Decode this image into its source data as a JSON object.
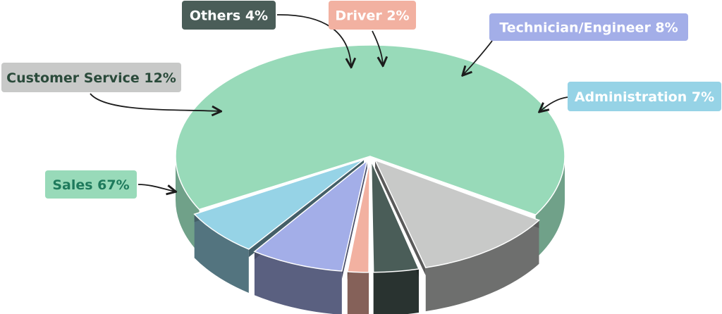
{
  "chart_data": {
    "type": "pie",
    "title": "",
    "legend": "none",
    "slices": [
      {
        "label": "Sales 67%",
        "name": "Sales",
        "value": 67,
        "color": "#98dab9",
        "label_bg": "#98dab9",
        "label_fg": "#1e7a5c"
      },
      {
        "label": "Customer Service 12%",
        "name": "Customer Service",
        "value": 12,
        "color": "#c8c9c8",
        "label_bg": "#c8c9c8",
        "label_fg": "#2a4a3a"
      },
      {
        "label": "Others 4%",
        "name": "Others",
        "value": 4,
        "color": "#4a5d58",
        "label_bg": "#4a5d58",
        "label_fg": "#ffffff"
      },
      {
        "label": "Driver 2%",
        "name": "Driver",
        "value": 2,
        "color": "#f2b1a1",
        "label_bg": "#f2b1a1",
        "label_fg": "#ffffff"
      },
      {
        "label": "Technician/Engineer 8%",
        "name": "Technician/Engineer",
        "value": 8,
        "color": "#a3aee8",
        "label_bg": "#a3aee8",
        "label_fg": "#ffffff"
      },
      {
        "label": "Administration 7%",
        "name": "Administration",
        "value": 7,
        "color": "#96d3e6",
        "label_bg": "#96d3e6",
        "label_fg": "#ffffff"
      }
    ]
  }
}
